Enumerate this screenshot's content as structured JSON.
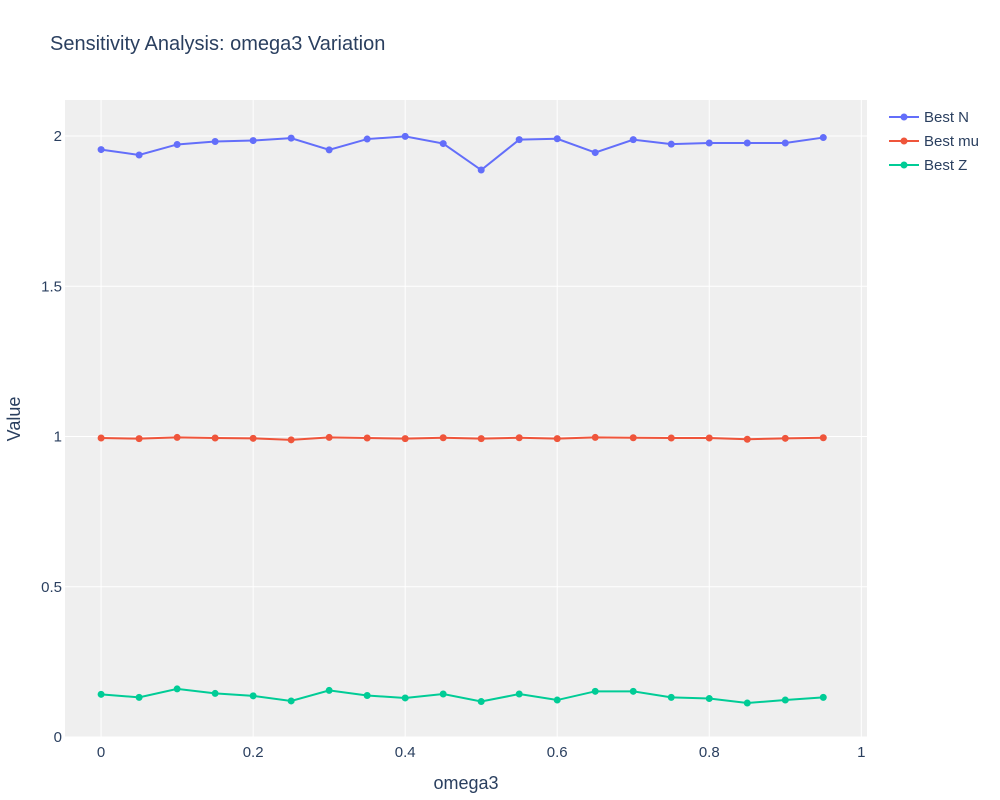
{
  "chart_data": {
    "type": "line",
    "title": "Sensitivity Analysis: omega3 Variation",
    "xlabel": "omega3",
    "ylabel": "Value",
    "xlim": [
      -0.0475,
      1.0075
    ],
    "ylim": [
      0,
      2.12
    ],
    "x_ticks": [
      0,
      0.2,
      0.4,
      0.6,
      0.8,
      1
    ],
    "x_tick_labels": [
      "0",
      "0.2",
      "0.4",
      "0.6",
      "0.8",
      "1"
    ],
    "y_ticks": [
      0,
      0.5,
      1,
      1.5,
      2
    ],
    "y_tick_labels": [
      "0",
      "0.5",
      "1",
      "1.5",
      "2"
    ],
    "grid": true,
    "legend_position": "top-right",
    "x": [
      0,
      0.05,
      0.1,
      0.15,
      0.2,
      0.25,
      0.3,
      0.35,
      0.4,
      0.45,
      0.5,
      0.55,
      0.6,
      0.65,
      0.7,
      0.75,
      0.8,
      0.85,
      0.9,
      0.95
    ],
    "series": [
      {
        "name": "Best N",
        "color": "#636efa",
        "values": [
          1.955,
          1.937,
          1.972,
          1.982,
          1.985,
          1.993,
          1.954,
          1.99,
          1.999,
          1.975,
          1.887,
          1.988,
          1.991,
          1.945,
          1.988,
          1.973,
          1.977,
          1.977,
          1.977,
          1.995
        ]
      },
      {
        "name": "Best mu",
        "color": "#ef553b",
        "values": [
          0.995,
          0.993,
          0.997,
          0.995,
          0.994,
          0.989,
          0.997,
          0.995,
          0.993,
          0.996,
          0.993,
          0.996,
          0.993,
          0.997,
          0.996,
          0.995,
          0.995,
          0.991,
          0.994,
          0.996
        ]
      },
      {
        "name": "Best Z",
        "color": "#00cc96",
        "values": [
          0.142,
          0.132,
          0.16,
          0.145,
          0.137,
          0.12,
          0.155,
          0.138,
          0.13,
          0.143,
          0.118,
          0.143,
          0.123,
          0.152,
          0.152,
          0.132,
          0.128,
          0.113,
          0.123,
          0.132
        ]
      }
    ]
  }
}
